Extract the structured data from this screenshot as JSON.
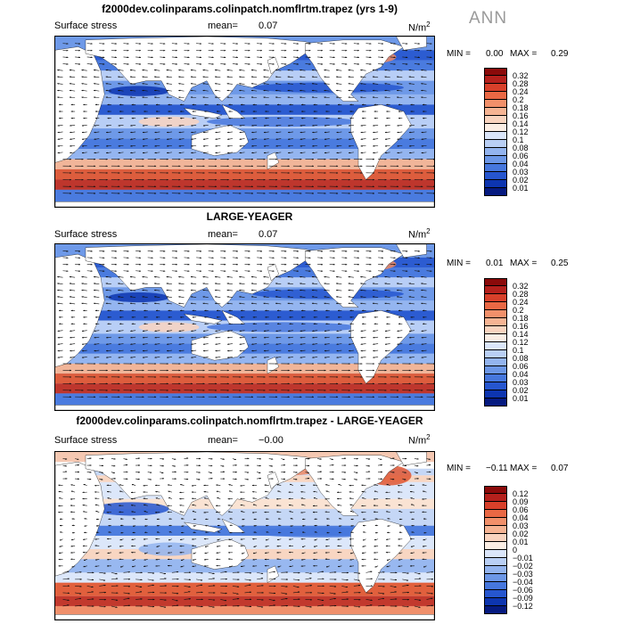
{
  "season": "ANN",
  "panels": [
    {
      "title": "f2000dev.colinparams.colinpatch.nomflrtm.trapez (yrs 1-9)",
      "variable": "Surface stress",
      "mean_label": "mean=",
      "mean_value": "0.07",
      "units": "N/m",
      "units_exp": "2",
      "min_label": "MIN =",
      "min_value": "0.00",
      "max_label": "MAX =",
      "max_value": "0.29",
      "colorbar": {
        "labels": [
          "0.32",
          "0.28",
          "0.24",
          "0.2",
          "0.18",
          "0.16",
          "0.14",
          "0.12",
          "0.1",
          "0.08",
          "0.06",
          "0.04",
          "0.03",
          "0.02",
          "0.01"
        ],
        "colors": [
          "#8b0a0a",
          "#b5201c",
          "#d8402a",
          "#ea6844",
          "#f2906a",
          "#f6b493",
          "#f9d4bf",
          "#fbeee4",
          "#dbe6fa",
          "#b9cff5",
          "#93b4ef",
          "#6c97e7",
          "#4677dd",
          "#2656cf",
          "#0d35b0",
          "#061a80"
        ]
      }
    },
    {
      "title": "LARGE-YEAGER",
      "variable": "Surface stress",
      "mean_label": "mean=",
      "mean_value": "0.07",
      "units": "N/m",
      "units_exp": "2",
      "min_label": "MIN =",
      "min_value": "0.01",
      "max_label": "MAX =",
      "max_value": "0.25",
      "colorbar": {
        "labels": [
          "0.32",
          "0.28",
          "0.24",
          "0.2",
          "0.18",
          "0.16",
          "0.14",
          "0.12",
          "0.1",
          "0.08",
          "0.06",
          "0.04",
          "0.03",
          "0.02",
          "0.01"
        ],
        "colors": [
          "#8b0a0a",
          "#b5201c",
          "#d8402a",
          "#ea6844",
          "#f2906a",
          "#f6b493",
          "#f9d4bf",
          "#fbeee4",
          "#dbe6fa",
          "#b9cff5",
          "#93b4ef",
          "#6c97e7",
          "#4677dd",
          "#2656cf",
          "#0d35b0",
          "#061a80"
        ]
      }
    },
    {
      "title": "f2000dev.colinparams.colinpatch.nomflrtm.trapez - LARGE-YEAGER",
      "variable": "Surface stress",
      "mean_label": "mean=",
      "mean_value": "−0.00",
      "units": "N/m",
      "units_exp": "2",
      "min_label": "MIN =",
      "min_value": "−0.11",
      "max_label": "MAX =",
      "max_value": "0.07",
      "colorbar": {
        "labels": [
          "0.12",
          "0.09",
          "0.06",
          "0.04",
          "0.03",
          "0.02",
          "0.01",
          "0",
          "−0.01",
          "−0.02",
          "−0.03",
          "−0.04",
          "−0.06",
          "−0.09",
          "−0.12"
        ],
        "colors": [
          "#8b0a0a",
          "#b5201c",
          "#d8402a",
          "#ea6844",
          "#f2906a",
          "#f6b493",
          "#f9d4bf",
          "#fbeee4",
          "#dbe6fa",
          "#b9cff5",
          "#93b4ef",
          "#6c97e7",
          "#4677dd",
          "#2656cf",
          "#0d35b0",
          "#061a80"
        ]
      }
    }
  ]
}
